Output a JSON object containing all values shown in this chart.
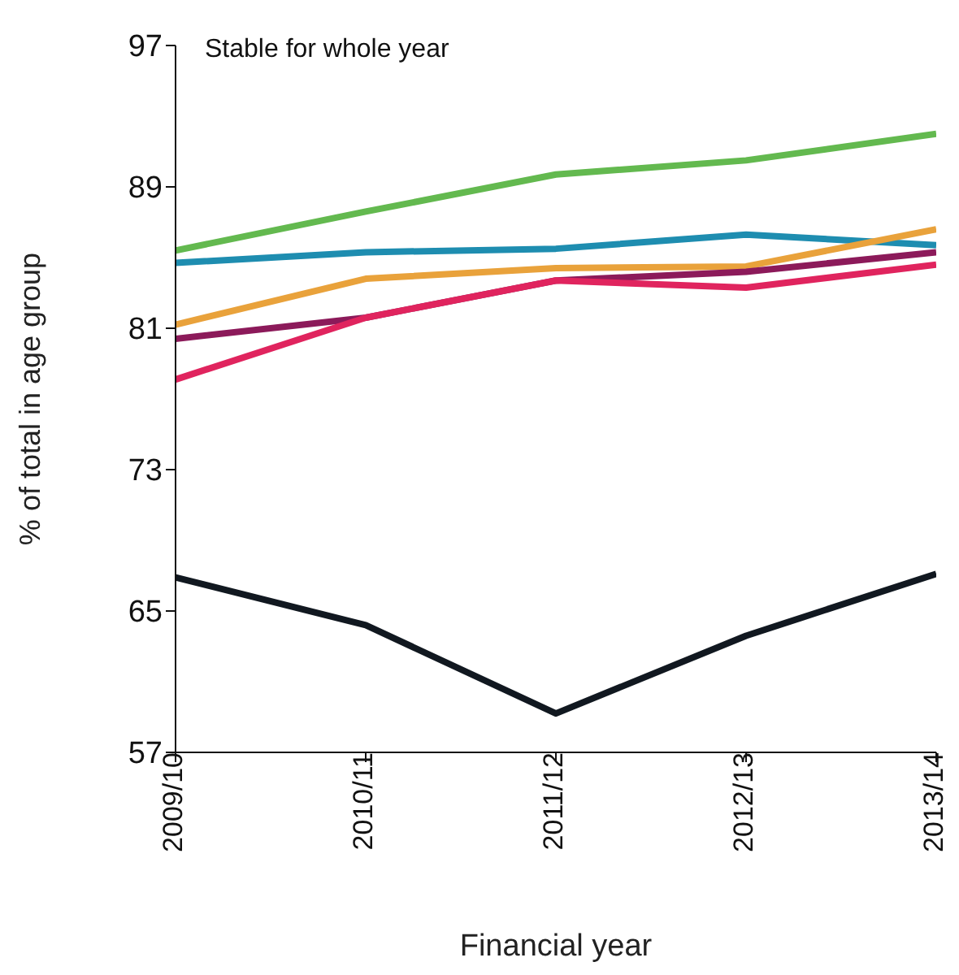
{
  "chart_data": {
    "type": "line",
    "title": "Stable for whole year",
    "xlabel": "Financial year",
    "ylabel": "% of total in age group",
    "categories": [
      "2009/10",
      "2010/11",
      "2011/12",
      "2012/13",
      "2013/14"
    ],
    "ylim": [
      57,
      97
    ],
    "yticks": [
      57,
      65,
      73,
      81,
      89,
      97
    ],
    "grid": false,
    "legend": false,
    "marker": "none",
    "line_style": "solid",
    "series": [
      {
        "color": "#63b94f",
        "values": [
          85.4,
          87.6,
          89.7,
          90.5,
          92.0
        ]
      },
      {
        "color": "#1e8db0",
        "values": [
          84.7,
          85.3,
          85.5,
          86.3,
          85.7
        ]
      },
      {
        "color": "#e9a23b",
        "values": [
          81.2,
          83.8,
          84.4,
          84.5,
          86.6
        ]
      },
      {
        "color": "#8c1a5a",
        "values": [
          80.4,
          81.6,
          83.7,
          84.2,
          85.3
        ]
      },
      {
        "color": "#e0245e",
        "values": [
          78.1,
          81.6,
          83.7,
          83.3,
          84.6
        ]
      },
      {
        "color": "#111820",
        "values": [
          66.9,
          64.2,
          59.2,
          63.6,
          67.1
        ]
      }
    ]
  }
}
